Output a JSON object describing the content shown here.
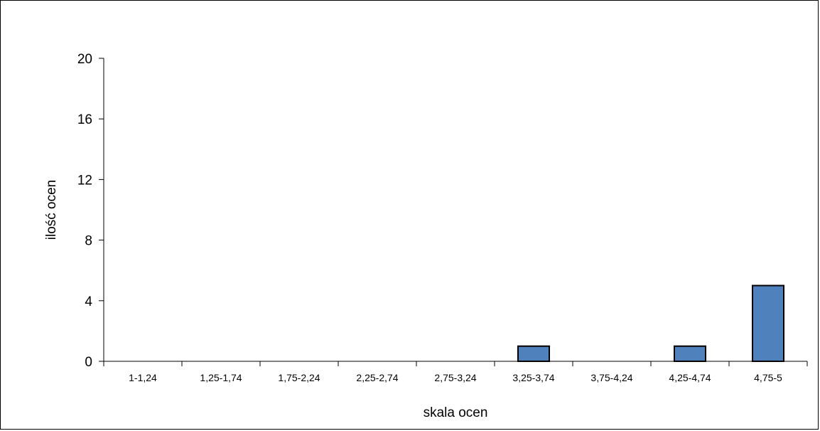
{
  "chart_data": {
    "type": "bar",
    "categories": [
      "1-1,24",
      "1,25-1,74",
      "1,75-2,24",
      "2,25-2,74",
      "2,75-3,24",
      "3,25-3,74",
      "3,75-4,24",
      "4,25-4,74",
      "4,75-5"
    ],
    "values": [
      0,
      0,
      0,
      0,
      0,
      1,
      0,
      1,
      5
    ],
    "title": "",
    "xlabel": "skala ocen",
    "ylabel": "ilość ocen",
    "ylim": [
      0,
      20
    ],
    "yticks": [
      0,
      4,
      8,
      12,
      16,
      20
    ],
    "grid": false,
    "legend": "none",
    "bar_color": "#4F81BD",
    "bar_edge_color": "#000000"
  }
}
